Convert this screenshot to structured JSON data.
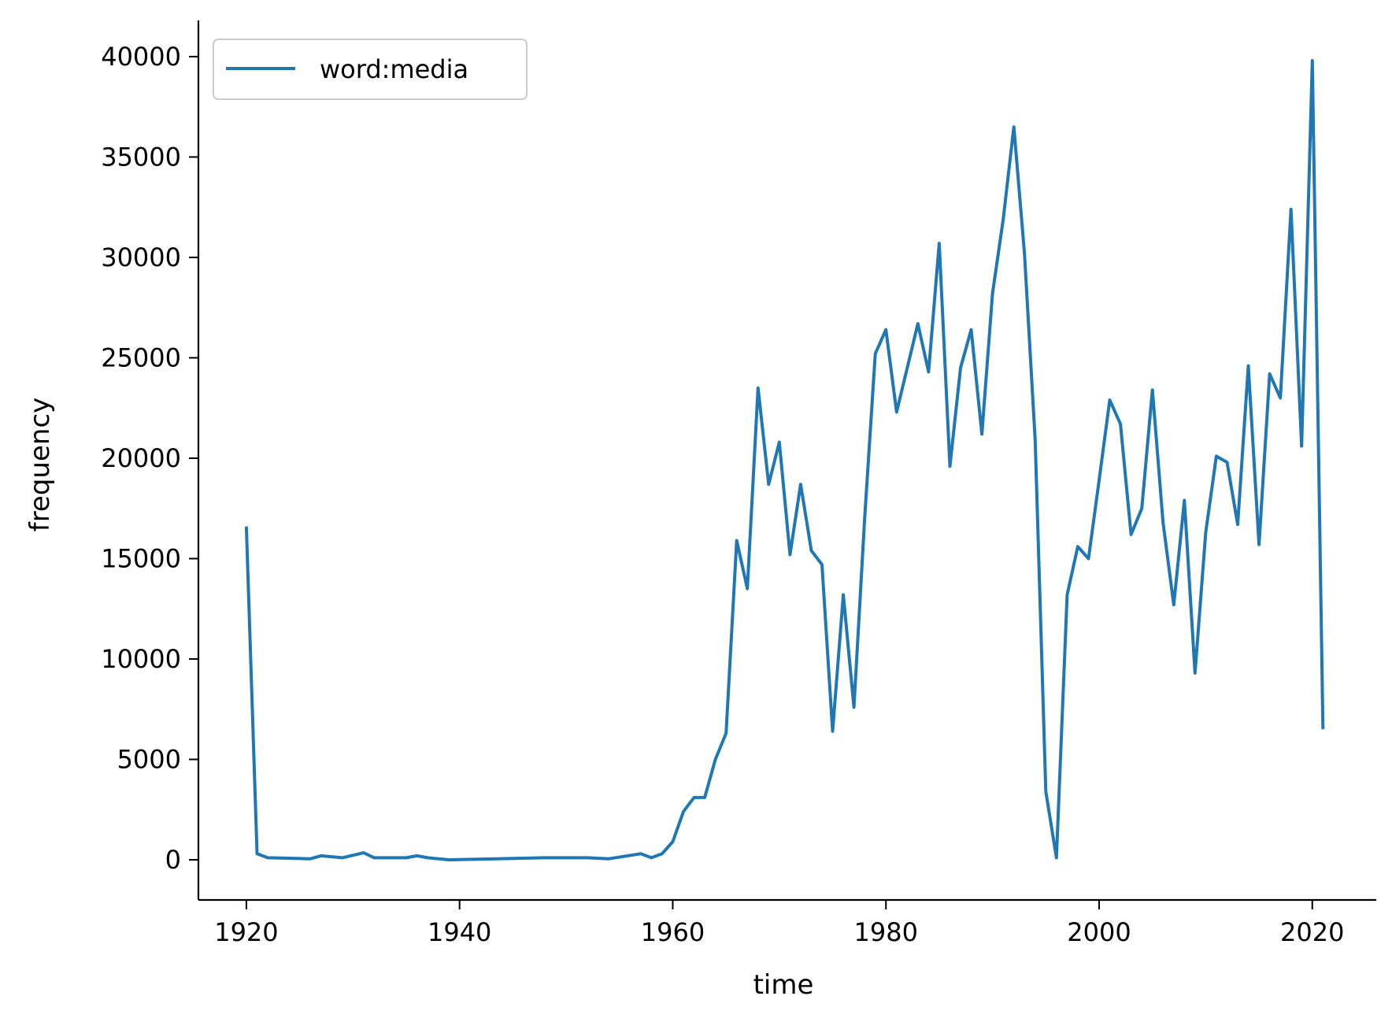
{
  "chart_data": {
    "type": "line",
    "title": "",
    "xlabel": "time",
    "ylabel": "frequency",
    "xlim": [
      1915.5,
      2026
    ],
    "ylim": [
      -2000,
      41800
    ],
    "x_ticks": [
      1920,
      1940,
      1960,
      1980,
      2000,
      2020
    ],
    "y_ticks": [
      0,
      5000,
      10000,
      15000,
      20000,
      25000,
      30000,
      35000,
      40000
    ],
    "grid": false,
    "legend_position": "top-left",
    "colors": {
      "series": "#1f77b4",
      "axis": "#000000",
      "legend_border": "#cccccc"
    },
    "series": [
      {
        "name": "word:media",
        "x": [
          1920,
          1921,
          1922,
          1926,
          1927,
          1929,
          1931,
          1932,
          1935,
          1936,
          1937,
          1939,
          1948,
          1952,
          1954,
          1957,
          1958,
          1959,
          1960,
          1961,
          1962,
          1963,
          1964,
          1965,
          1966,
          1967,
          1968,
          1969,
          1970,
          1971,
          1972,
          1973,
          1974,
          1975,
          1976,
          1977,
          1978,
          1979,
          1980,
          1981,
          1982,
          1983,
          1984,
          1985,
          1986,
          1987,
          1988,
          1989,
          1990,
          1991,
          1992,
          1993,
          1994,
          1995,
          1996,
          1997,
          1998,
          1999,
          2000,
          2001,
          2002,
          2003,
          2004,
          2005,
          2006,
          2007,
          2008,
          2009,
          2010,
          2011,
          2012,
          2013,
          2014,
          2015,
          2016,
          2017,
          2018,
          2019,
          2020,
          2021
        ],
        "values": [
          16600,
          300,
          100,
          50,
          200,
          100,
          350,
          100,
          100,
          200,
          100,
          0,
          100,
          100,
          50,
          300,
          100,
          300,
          900,
          2400,
          3100,
          3100,
          5000,
          6300,
          15900,
          13500,
          23500,
          18700,
          20800,
          15200,
          18700,
          15400,
          14700,
          6400,
          13200,
          7600,
          17000,
          25200,
          26400,
          22300,
          24500,
          26700,
          24300,
          30700,
          19600,
          24500,
          26400,
          21200,
          28200,
          31900,
          36500,
          30200,
          20900,
          3400,
          100,
          13200,
          15600,
          15000,
          18900,
          22900,
          21700,
          16200,
          17500,
          23400,
          16800,
          12700,
          17900,
          9300,
          16300,
          20100,
          19800,
          16700,
          24600,
          15700,
          24200,
          23000,
          32400,
          20600,
          39800,
          6500
        ]
      }
    ]
  }
}
